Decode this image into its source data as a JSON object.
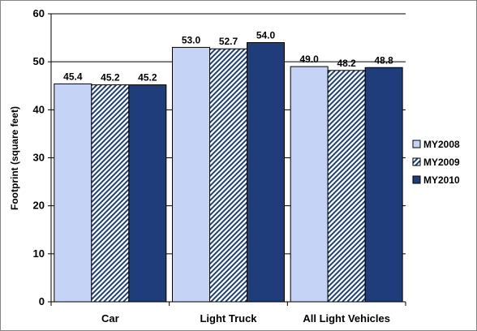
{
  "chart_data": {
    "type": "bar",
    "categories": [
      "Car",
      "Light Truck",
      "All Light Vehicles"
    ],
    "series": [
      {
        "name": "MY2008",
        "values": [
          45.4,
          53.0,
          49.0
        ],
        "value_labels": [
          "45.4",
          "53.0",
          "49.0"
        ],
        "color": "#c5d4f6",
        "pattern": "solid"
      },
      {
        "name": "MY2009",
        "values": [
          45.2,
          52.7,
          48.2
        ],
        "value_labels": [
          "45.2",
          "52.7",
          "48.2"
        ],
        "color": "#1f3d7a",
        "pattern": "diagonal-hatch"
      },
      {
        "name": "MY2010",
        "values": [
          45.2,
          54.0,
          48.8
        ],
        "value_labels": [
          "45.2",
          "54.0",
          "48.8"
        ],
        "color": "#1f3d7a",
        "pattern": "solid"
      }
    ],
    "ylabel": "Footprint (square feet)",
    "xlabel": "",
    "ylim": [
      0,
      60
    ],
    "yticks": [
      "0",
      "10",
      "20",
      "30",
      "40",
      "50",
      "60"
    ],
    "grid": true,
    "legend_position": "right"
  }
}
